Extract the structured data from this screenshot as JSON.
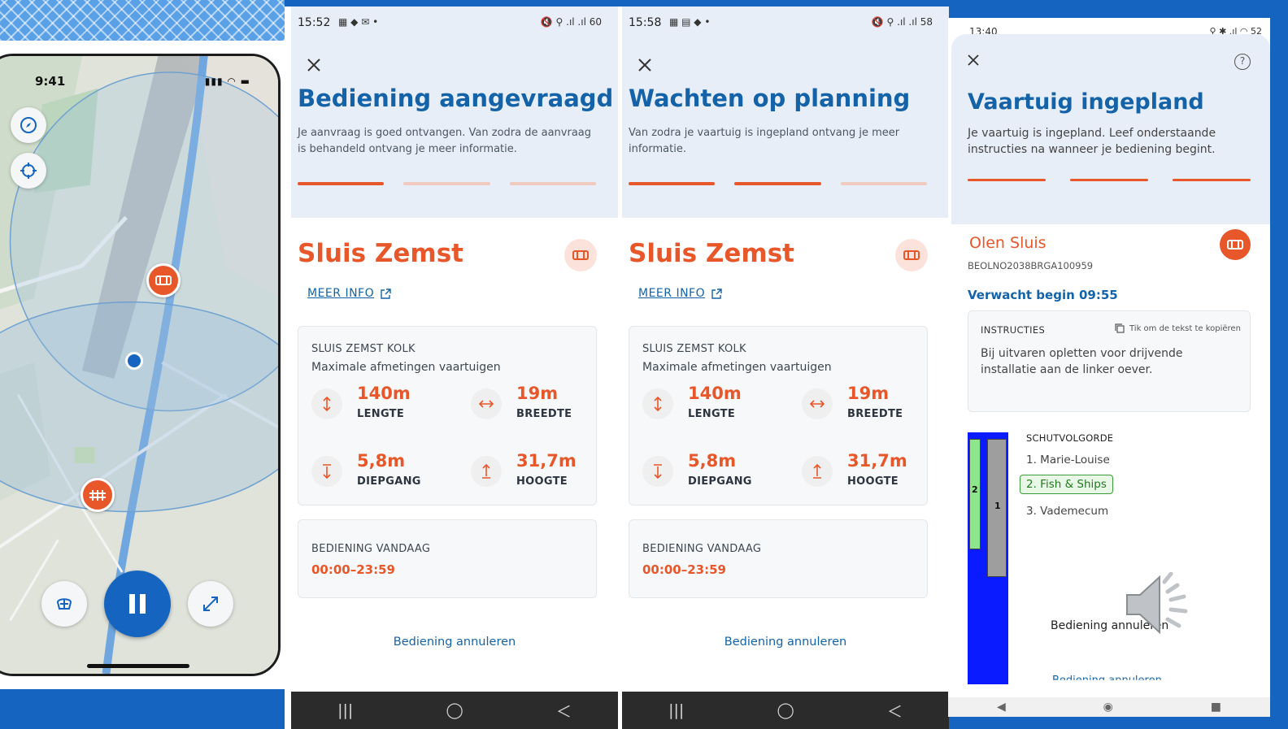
{
  "phone_map": {
    "status_time": "9:41",
    "status_icons": "▮▮▮ ◠ ▬"
  },
  "screen_requested": {
    "status_time": "15:52",
    "status_icons": "▦ ◆ ✉ •",
    "status_right": "🔇 ⚲ .ıl .ıl 60",
    "title": "Bediening aangevraagd",
    "description": "Je aanvraag is goed ontvangen. Van zodra de aanvraag is behandeld ontvang je meer informatie.",
    "steps_done": 1,
    "lock_name": "Sluis Zemst",
    "meer_info": "MEER INFO",
    "chamber": "SLUIS ZEMST KOLK",
    "max_dims_label": "Maximale afmetingen vaartuigen",
    "length_value": "140m",
    "length_label": "LENGTE",
    "width_value": "19m",
    "width_label": "BREEDTE",
    "draft_value": "5,8m",
    "draft_label": "DIEPGANG",
    "height_value": "31,7m",
    "height_label": "HOOGTE",
    "today_label": "BEDIENING VANDAAG",
    "today_hours": "00:00–23:59",
    "cancel": "Bediening annuleren"
  },
  "screen_waiting": {
    "status_time": "15:58",
    "status_icons": "▦ ▤ ◆ •",
    "status_right": "🔇 ⚲ .ıl .ıl 58",
    "title": "Wachten op planning",
    "description": "Van zodra je vaartuig is ingepland ontvang je meer informatie.",
    "steps_done": 2,
    "lock_name": "Sluis Zemst",
    "meer_info": "MEER INFO",
    "chamber": "SLUIS ZEMST KOLK",
    "max_dims_label": "Maximale afmetingen vaartuigen",
    "length_value": "140m",
    "length_label": "LENGTE",
    "width_value": "19m",
    "width_label": "BREEDTE",
    "draft_value": "5,8m",
    "draft_label": "DIEPGANG",
    "height_value": "31,7m",
    "height_label": "HOOGTE",
    "today_label": "BEDIENING VANDAAG",
    "today_hours": "00:00–23:59",
    "cancel": "Bediening annuleren"
  },
  "screen_planned": {
    "status_time": "13:40",
    "status_right": "⚲ ✱ .ıl ◠ 52",
    "title": "Vaartuig ingepland",
    "description": "Je vaartuig is ingepland. Leef onderstaande instructies na wanneer je bediening begint.",
    "steps_done": 3,
    "lock_name": "Olen Sluis",
    "lock_code": "BEOLNO2038BRGA100959",
    "expected": "Verwacht begin 09:55",
    "instructions_label": "INSTRUCTIES",
    "copy_hint": "Tik om de tekst te kopiëren",
    "instructions": "Bij uitvaren opletten voor drijvende installatie aan de linker oever.",
    "sequence_label": "SCHUTVOLGORDE",
    "sequence": [
      "1. Marie-Louise",
      "2. Fish & Ships",
      "3. Vademecum"
    ],
    "ship_left_label": "2",
    "ship_right_label": "1",
    "cancel": "Bediening annuleren",
    "cancel_repeat": "Bediening annuleren"
  },
  "nav_icons": [
    "recent-apps",
    "home",
    "back"
  ],
  "colors": {
    "accent_orange": "#e8572a",
    "primary_blue": "#1463a8",
    "header_bg": "#e8eef7",
    "lock_water": "#0a1bff",
    "own_ship_green": "#8de68b"
  }
}
